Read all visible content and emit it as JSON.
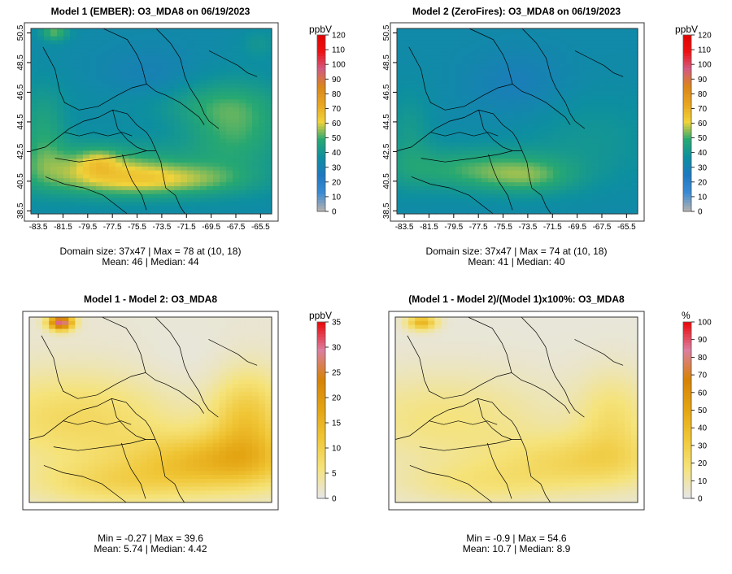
{
  "panels": [
    {
      "title": "Model 1 (EMBER): O3_MDA8 on 06/19/2023",
      "unit": "ppbV",
      "stat_line1": "Domain size: 37x47 | Max = 78 at (10, 18)",
      "stat_line2": "Mean: 46 |  Median: 44",
      "show_axes": true
    },
    {
      "title": "Model 2 (ZeroFires): O3_MDA8 on 06/19/2023",
      "unit": "ppbV",
      "stat_line1": "Domain size: 37x47 | Max = 74 at (10, 18)",
      "stat_line2": "Mean: 41 |  Median: 40",
      "show_axes": true
    },
    {
      "title": "Model 1 - Model 2: O3_MDA8",
      "unit": "ppbV",
      "stat_line1": "Min = -0.27 | Max = 39.6",
      "stat_line2": "Mean: 5.74 |  Median: 4.42",
      "show_axes": false
    },
    {
      "title": "(Model 1 - Model 2)/(Model 1)x100%: O3_MDA8",
      "unit": "%",
      "stat_line1": "Min = -0.9 | Max = 54.6",
      "stat_line2": "Mean: 10.7 |  Median: 8.9",
      "show_axes": false
    }
  ],
  "chart_data": [
    {
      "type": "heatmap",
      "title": "Model 1 (EMBER): O3_MDA8 on 06/19/2023",
      "grid_size": "37x47",
      "x_ticks": [
        "-83.5",
        "-81.5",
        "-79.5",
        "-77.5",
        "-75.5",
        "-73.5",
        "-71.5",
        "-69.5",
        "-67.5",
        "-65.5"
      ],
      "y_ticks": [
        "38.5",
        "40.5",
        "42.5",
        "44.5",
        "46.5",
        "48.5",
        "50.5"
      ],
      "xlim": [
        -84.1,
        -64.6
      ],
      "ylim": [
        38.3,
        50.8
      ],
      "colorbar_ticks": [
        0,
        10,
        20,
        30,
        40,
        50,
        60,
        70,
        80,
        90,
        100,
        110,
        120
      ],
      "colorbar_range": [
        0,
        120
      ],
      "colorbar_unit": "ppbV",
      "max": 78,
      "max_at": "(10, 18)",
      "mean": 46,
      "median": 44
    },
    {
      "type": "heatmap",
      "title": "Model 2 (ZeroFires): O3_MDA8 on 06/19/2023",
      "grid_size": "37x47",
      "x_ticks": [
        "-83.5",
        "-81.5",
        "-79.5",
        "-77.5",
        "-75.5",
        "-73.5",
        "-71.5",
        "-69.5",
        "-67.5",
        "-65.5"
      ],
      "y_ticks": [
        "38.5",
        "40.5",
        "42.5",
        "44.5",
        "46.5",
        "48.5",
        "50.5"
      ],
      "xlim": [
        -84.1,
        -64.6
      ],
      "ylim": [
        38.3,
        50.8
      ],
      "colorbar_ticks": [
        0,
        10,
        20,
        30,
        40,
        50,
        60,
        70,
        80,
        90,
        100,
        110,
        120
      ],
      "colorbar_range": [
        0,
        120
      ],
      "colorbar_unit": "ppbV",
      "max": 74,
      "max_at": "(10, 18)",
      "mean": 41,
      "median": 40
    },
    {
      "type": "heatmap",
      "title": "Model 1 - Model 2: O3_MDA8",
      "colorbar_ticks": [
        0,
        5,
        10,
        15,
        20,
        25,
        30,
        35
      ],
      "colorbar_range": [
        0,
        35
      ],
      "colorbar_unit": "ppbV",
      "min": -0.27,
      "max": 39.6,
      "mean": 5.74,
      "median": 4.42
    },
    {
      "type": "heatmap",
      "title": "(Model 1 - Model 2)/(Model 1)x100%: O3_MDA8",
      "colorbar_ticks": [
        0,
        10,
        20,
        30,
        40,
        50,
        60,
        70,
        80,
        90,
        100
      ],
      "colorbar_range": [
        0,
        100
      ],
      "colorbar_unit": "%",
      "min": -0.9,
      "max": 54.6,
      "mean": 10.7,
      "median": 8.9
    }
  ],
  "colors": {
    "conc_scale": [
      "#b0b0b0",
      "#3a8ad3",
      "#1e78c0",
      "#0d8fa0",
      "#27a872",
      "#f0d23a",
      "#e9a520",
      "#d9861a",
      "#d35a80",
      "#ee1111",
      "#e10000"
    ],
    "diff_scale": [
      "#e6e6e6",
      "#f5e37a",
      "#f0c636",
      "#e4a412",
      "#d68207",
      "#dc7ea0",
      "#ec0000"
    ]
  }
}
